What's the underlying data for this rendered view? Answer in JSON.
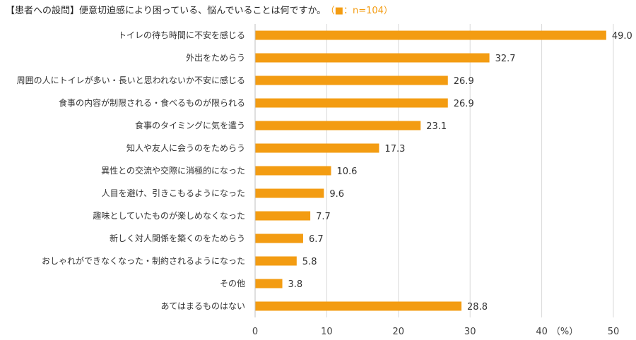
{
  "title": {
    "question": "【患者への設問】便意切迫感により困っている、悩んでいることは何ですか。",
    "legend": "（■：n=104）"
  },
  "chart_data": {
    "type": "bar",
    "orientation": "horizontal",
    "title": "【患者への設問】便意切迫感により困っている、悩んでいることは何ですか。",
    "legend": "（■：n=104）",
    "xlabel": "（%）",
    "xlim": [
      0,
      50
    ],
    "xticks": [
      0,
      10,
      20,
      30,
      40,
      50
    ],
    "bar_color": "#f39c12",
    "grid_color": "#d9d9d9",
    "categories": [
      "トイレの待ち時間に不安を感じる",
      "外出をためらう",
      "周囲の人にトイレが多い・長いと思われないか不安に感じる",
      "食事の内容が制限される・食べるものが限られる",
      "食事のタイミングに気を遣う",
      "知人や友人に会うのをためらう",
      "異性との交流や交際に消極的になった",
      "人目を避け、引きこもるようになった",
      "趣味としていたものが楽しめなくなった",
      "新しく対人関係を築くのをためらう",
      "おしゃれができなくなった・制約されるようになった",
      "その他",
      "あてはまるものはない"
    ],
    "values": [
      49.0,
      32.7,
      26.9,
      26.9,
      23.1,
      17.3,
      10.6,
      9.6,
      7.7,
      6.7,
      5.8,
      3.8,
      28.8
    ],
    "value_labels": [
      "49.0",
      "32.7",
      "26.9",
      "26.9",
      "23.1",
      "17.3",
      "10.6",
      "9.6",
      "7.7",
      "6.7",
      "5.8",
      "3.8",
      "28.8"
    ]
  }
}
